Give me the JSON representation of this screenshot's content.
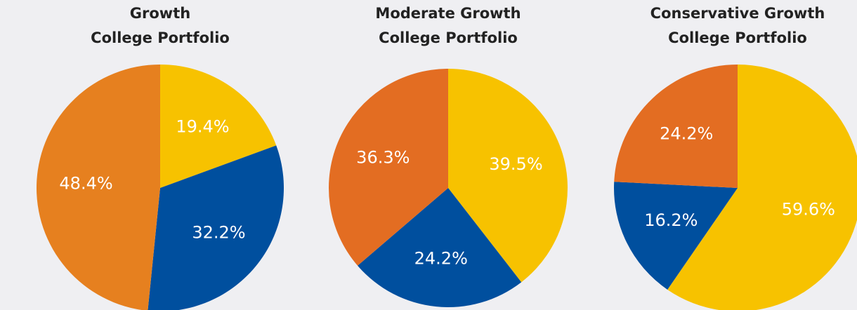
{
  "chart_data": [
    {
      "type": "pie",
      "title": [
        "Growth",
        "College Portfolio"
      ],
      "values": [
        19.4,
        32.2,
        48.4
      ],
      "value_labels": [
        "19.4%",
        "32.2%",
        "48.4%"
      ],
      "colors": [
        "#f7c200",
        "#004f9e",
        "#e6801f"
      ]
    },
    {
      "type": "pie",
      "title": [
        "Moderate Growth",
        "College Portfolio"
      ],
      "values": [
        39.5,
        24.2,
        36.3
      ],
      "value_labels": [
        "39.5%",
        "24.2%",
        "36.3%"
      ],
      "colors": [
        "#f7c200",
        "#004f9e",
        "#e36d22"
      ]
    },
    {
      "type": "pie",
      "title": [
        "Conservative Growth",
        "College Portfolio"
      ],
      "values": [
        59.6,
        16.2,
        24.2
      ],
      "value_labels": [
        "59.6%",
        "16.2%",
        "24.2%"
      ],
      "colors": [
        "#f7c200",
        "#004f9e",
        "#e36d22"
      ]
    }
  ]
}
